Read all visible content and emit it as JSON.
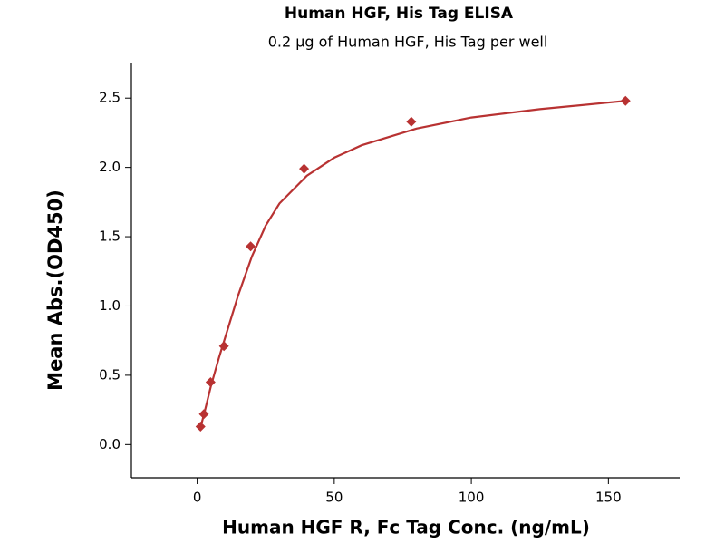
{
  "chart_data": {
    "type": "scatter",
    "title": "Human HGF, His Tag ELISA",
    "subtitle": "0.2 μg of Human HGF, His Tag per well",
    "x_label": "Human HGF R, Fc Tag Conc. (ng/mL)",
    "y_label": "Mean Abs.(OD450)",
    "x": [
      1.22,
      2.44,
      4.88,
      9.77,
      19.5,
      39,
      78.1,
      156.25
    ],
    "values": [
      0.13,
      0.22,
      0.45,
      0.71,
      1.43,
      1.99,
      2.33,
      2.48
    ],
    "color": "#b83232",
    "fit": {
      "x": [
        1.2,
        3,
        5,
        8,
        10,
        15,
        20,
        25,
        30,
        40,
        50,
        60,
        80,
        100,
        125,
        156
      ],
      "values": [
        0.12,
        0.26,
        0.42,
        0.63,
        0.76,
        1.08,
        1.36,
        1.58,
        1.74,
        1.94,
        2.07,
        2.16,
        2.28,
        2.36,
        2.42,
        2.48
      ],
      "color": "#b83232"
    },
    "xlim": [
      -24,
      176
    ],
    "ylim": [
      -0.24,
      2.75
    ],
    "xticks": [
      0,
      50,
      100,
      150
    ],
    "yticks": [
      {
        "value": 0,
        "label": "0.0"
      },
      {
        "value": 0.5,
        "label": "0.5"
      },
      {
        "value": 1,
        "label": "1.0"
      },
      {
        "value": 1.5,
        "label": "1.5"
      },
      {
        "value": 2,
        "label": "2.0"
      },
      {
        "value": 2.5,
        "label": "2.5"
      }
    ]
  }
}
